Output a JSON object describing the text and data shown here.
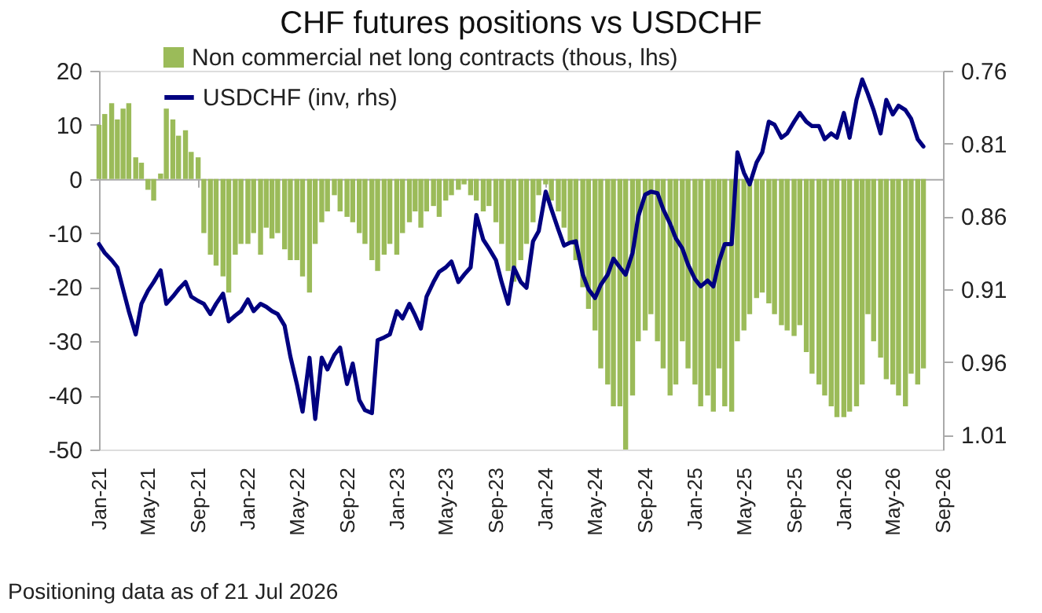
{
  "chart_data": {
    "type": "bar",
    "title": "CHF futures positions  vs USDCHF",
    "annotations": [
      "Positioning data as of 21 Jul 2026"
    ],
    "x": [
      "2021-01-01",
      "2021-01-15",
      "2021-02-01",
      "2021-02-15",
      "2021-03-01",
      "2021-03-15",
      "2021-04-01",
      "2021-04-15",
      "2021-05-01",
      "2021-05-15",
      "2021-06-01",
      "2021-06-15",
      "2021-07-01",
      "2021-07-15",
      "2021-08-01",
      "2021-08-15",
      "2021-09-01",
      "2021-09-15",
      "2021-10-01",
      "2021-10-15",
      "2021-11-01",
      "2021-11-15",
      "2021-12-01",
      "2021-12-15",
      "2022-01-01",
      "2022-01-15",
      "2022-02-01",
      "2022-02-15",
      "2022-03-01",
      "2022-03-15",
      "2022-04-01",
      "2022-04-15",
      "2022-05-01",
      "2022-05-15",
      "2022-06-01",
      "2022-06-15",
      "2022-07-01",
      "2022-07-15",
      "2022-08-01",
      "2022-08-15",
      "2022-09-01",
      "2022-09-15",
      "2022-10-01",
      "2022-10-15",
      "2022-11-01",
      "2022-11-15",
      "2022-12-01",
      "2022-12-15",
      "2023-01-01",
      "2023-01-15",
      "2023-02-01",
      "2023-02-15",
      "2023-03-01",
      "2023-03-15",
      "2023-04-01",
      "2023-04-15",
      "2023-05-01",
      "2023-05-15",
      "2023-06-01",
      "2023-06-15",
      "2023-07-01",
      "2023-07-15",
      "2023-08-01",
      "2023-08-15",
      "2023-09-01",
      "2023-09-15",
      "2023-10-01",
      "2023-10-15",
      "2023-11-01",
      "2023-11-15",
      "2023-12-01",
      "2023-12-15",
      "2024-01-01",
      "2024-01-15",
      "2024-02-01",
      "2024-02-15",
      "2024-03-01",
      "2024-03-15",
      "2024-04-01",
      "2024-04-15",
      "2024-05-01",
      "2024-05-15",
      "2024-06-01",
      "2024-06-15",
      "2024-07-01",
      "2024-07-15",
      "2024-08-01",
      "2024-08-15",
      "2024-09-01",
      "2024-09-15",
      "2024-10-01",
      "2024-10-15",
      "2024-11-01",
      "2024-11-15",
      "2024-12-01",
      "2024-12-15",
      "2025-01-01",
      "2025-01-15",
      "2025-02-01",
      "2025-02-15",
      "2025-03-01",
      "2025-03-15",
      "2025-04-01",
      "2025-04-15",
      "2025-05-01",
      "2025-05-15",
      "2025-06-01",
      "2025-06-15",
      "2025-07-01",
      "2025-07-15",
      "2025-08-01",
      "2025-08-15",
      "2025-09-01",
      "2025-09-15",
      "2025-10-01",
      "2025-10-15",
      "2025-11-01",
      "2025-11-15",
      "2025-12-01",
      "2025-12-15",
      "2026-01-01",
      "2026-01-15",
      "2026-02-01",
      "2026-02-15",
      "2026-03-01",
      "2026-03-15",
      "2026-04-01",
      "2026-04-15",
      "2026-05-01",
      "2026-05-15",
      "2026-06-01",
      "2026-06-15",
      "2026-07-01",
      "2026-07-15"
    ],
    "xlim": [
      "2021-01-01",
      "2026-09-01"
    ],
    "xticks": [
      {
        "value": "2021-01-01",
        "label": "Jan-21"
      },
      {
        "value": "2021-05-01",
        "label": "May-21"
      },
      {
        "value": "2021-09-01",
        "label": "Sep-21"
      },
      {
        "value": "2022-01-01",
        "label": "Jan-22"
      },
      {
        "value": "2022-05-01",
        "label": "May-22"
      },
      {
        "value": "2022-09-01",
        "label": "Sep-22"
      },
      {
        "value": "2023-01-01",
        "label": "Jan-23"
      },
      {
        "value": "2023-05-01",
        "label": "May-23"
      },
      {
        "value": "2023-09-01",
        "label": "Sep-23"
      },
      {
        "value": "2024-01-01",
        "label": "Jan-24"
      },
      {
        "value": "2024-05-01",
        "label": "May-24"
      },
      {
        "value": "2024-09-01",
        "label": "Sep-24"
      },
      {
        "value": "2025-01-01",
        "label": "Jan-25"
      },
      {
        "value": "2025-05-01",
        "label": "May-25"
      },
      {
        "value": "2025-09-01",
        "label": "Sep-25"
      },
      {
        "value": "2026-01-01",
        "label": "Jan-26"
      },
      {
        "value": "2026-05-01",
        "label": "May-26"
      },
      {
        "value": "2026-09-01",
        "label": "Sep-26"
      }
    ],
    "ylim": [
      -50,
      20
    ],
    "yticks": [
      -50,
      -40,
      -30,
      -20,
      -10,
      0,
      10,
      20
    ],
    "y2lim": [
      1.02,
      0.76
    ],
    "y2ticks": [
      0.76,
      0.81,
      0.86,
      0.91,
      0.96,
      1.01
    ],
    "legend": "top left",
    "series": [
      {
        "name": "Non commercial net long contracts (thous, lhs)",
        "color": "#9bbb59",
        "values": [
          10,
          12,
          14,
          11,
          13,
          14,
          4,
          3,
          -2,
          -4,
          1,
          13,
          11,
          8,
          9,
          5,
          4,
          -10,
          -14,
          -16,
          -18,
          -21,
          -14,
          -12,
          -12,
          -10,
          -14,
          -9,
          -11,
          -10,
          -13,
          -15,
          -15,
          -18,
          -21,
          -12,
          -8,
          -6,
          -3,
          -6,
          -7,
          -8,
          -10,
          -12,
          -15,
          -17,
          -14,
          -12,
          -14,
          -10,
          -8,
          -6,
          -9,
          -6,
          -5,
          -7,
          -4,
          -3,
          -2,
          -1,
          -3,
          -4,
          -6,
          -5,
          -8,
          -12,
          -17,
          -19,
          -15,
          -12,
          -8,
          -3,
          -1,
          -4,
          -6,
          -9,
          -12,
          -15,
          -20,
          -24,
          -28,
          -35,
          -38,
          -42,
          -42,
          -50,
          -40,
          -30,
          -28,
          -25,
          -30,
          -35,
          -40,
          -38,
          -30,
          -35,
          -38,
          -42,
          -40,
          -43,
          -35,
          -42,
          -43,
          -30,
          -28,
          -25,
          -22,
          -21,
          -23,
          -25,
          -27,
          -28,
          -29,
          -27,
          -32,
          -36,
          -38,
          -40,
          -42,
          -44,
          -44,
          -43,
          -42,
          -38,
          -25,
          -30,
          -33,
          -37,
          -38,
          -40,
          -42,
          -36,
          -38,
          -35
        ]
      },
      {
        "name": "USDCHF (inv, rhs)",
        "type": "line",
        "axis": "y2",
        "color": "#000080",
        "values": [
          0.879,
          0.885,
          0.89,
          0.895,
          0.91,
          0.925,
          0.941,
          0.92,
          0.911,
          0.905,
          0.897,
          0.92,
          0.915,
          0.91,
          0.905,
          0.915,
          0.918,
          0.92,
          0.927,
          0.92,
          0.913,
          0.932,
          0.928,
          0.925,
          0.917,
          0.925,
          0.92,
          0.922,
          0.925,
          0.927,
          0.935,
          0.956,
          0.975,
          0.994,
          0.957,
          0.999,
          0.957,
          0.965,
          0.955,
          0.95,
          0.975,
          0.961,
          0.986,
          0.993,
          0.995,
          0.945,
          0.943,
          0.941,
          0.925,
          0.93,
          0.92,
          0.928,
          0.937,
          0.915,
          0.905,
          0.898,
          0.895,
          0.891,
          0.905,
          0.9,
          0.895,
          0.859,
          0.876,
          0.882,
          0.89,
          0.905,
          0.92,
          0.895,
          0.905,
          0.909,
          0.877,
          0.87,
          0.843,
          0.855,
          0.869,
          0.88,
          0.878,
          0.877,
          0.9,
          0.91,
          0.916,
          0.907,
          0.9,
          0.889,
          0.895,
          0.9,
          0.885,
          0.86,
          0.845,
          0.843,
          0.844,
          0.855,
          0.865,
          0.875,
          0.882,
          0.893,
          0.903,
          0.908,
          0.904,
          0.908,
          0.891,
          0.879,
          0.879,
          0.816,
          0.83,
          0.838,
          0.823,
          0.816,
          0.795,
          0.797,
          0.806,
          0.803,
          0.795,
          0.789,
          0.795,
          0.798,
          0.798,
          0.807,
          0.803,
          0.806,
          0.789,
          0.806,
          0.78,
          0.766,
          0.776,
          0.787,
          0.803,
          0.78,
          0.79,
          0.784,
          0.787,
          0.793,
          0.807,
          0.812
        ]
      }
    ]
  }
}
